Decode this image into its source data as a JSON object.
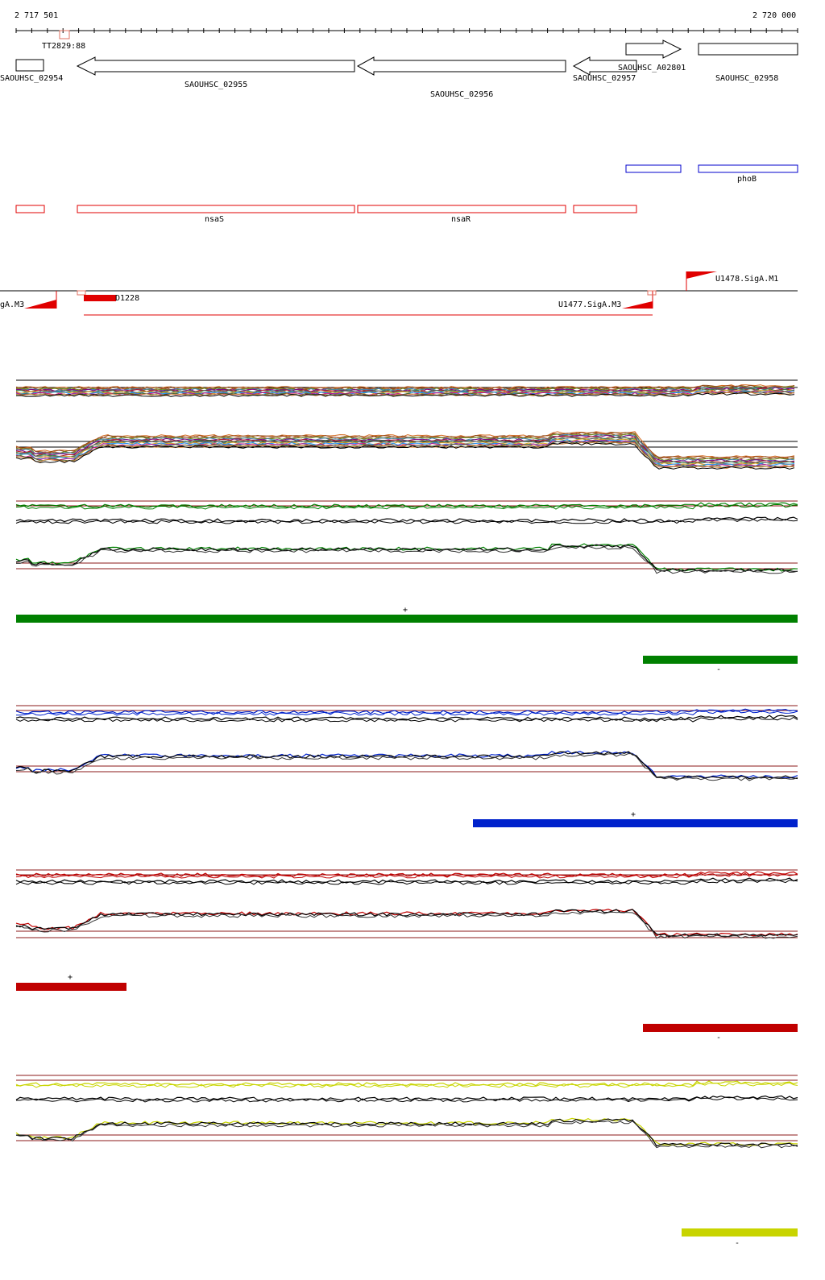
{
  "ruler": {
    "start_label": "2 717 501",
    "end_label": "2 720 000",
    "start": 2717501,
    "end": 2720000,
    "tick_count": 50,
    "marker_label": "TT2829:88"
  },
  "genes": [
    {
      "label": "SAOUHSC_02954",
      "strand": "none"
    },
    {
      "label": "SAOUHSC_02955",
      "strand": "-"
    },
    {
      "label": "SAOUHSC_02956",
      "strand": "-"
    },
    {
      "label": "SAOUHSC_02957",
      "strand": "-"
    },
    {
      "label": "SAOUHSC_A02801",
      "strand": "+"
    },
    {
      "label": "SAOUHSC_02958",
      "strand": "none"
    }
  ],
  "blue_features": [
    {
      "label": ""
    },
    {
      "label": "phoB"
    }
  ],
  "red_features": [
    {
      "label": ""
    },
    {
      "label": "nsaS"
    },
    {
      "label": "nsaR"
    },
    {
      "label": ""
    }
  ],
  "promoters": [
    {
      "label": "gA.M3"
    },
    {
      "label": "U1477.SigA.M3"
    },
    {
      "label": "U1478.SigA.M1"
    }
  ],
  "transcript": {
    "label": "D1228"
  },
  "conditions": [
    {
      "name": "green",
      "color": "#008000",
      "segments": [
        {
          "strand": "+"
        },
        {
          "strand": "-"
        }
      ]
    },
    {
      "name": "blue",
      "color": "#0022cc",
      "segments": [
        {
          "strand": "+"
        }
      ]
    },
    {
      "name": "red",
      "color": "#c00000",
      "segments": [
        {
          "strand": "+"
        },
        {
          "strand": "-"
        }
      ]
    },
    {
      "name": "yellow",
      "color": "#c8d400",
      "segments": [
        {
          "strand": "-"
        }
      ]
    }
  ],
  "colors": {
    "feature_red": "#e00000",
    "feature_blue": "#0000cc",
    "threshold": "#8b1a1a"
  }
}
